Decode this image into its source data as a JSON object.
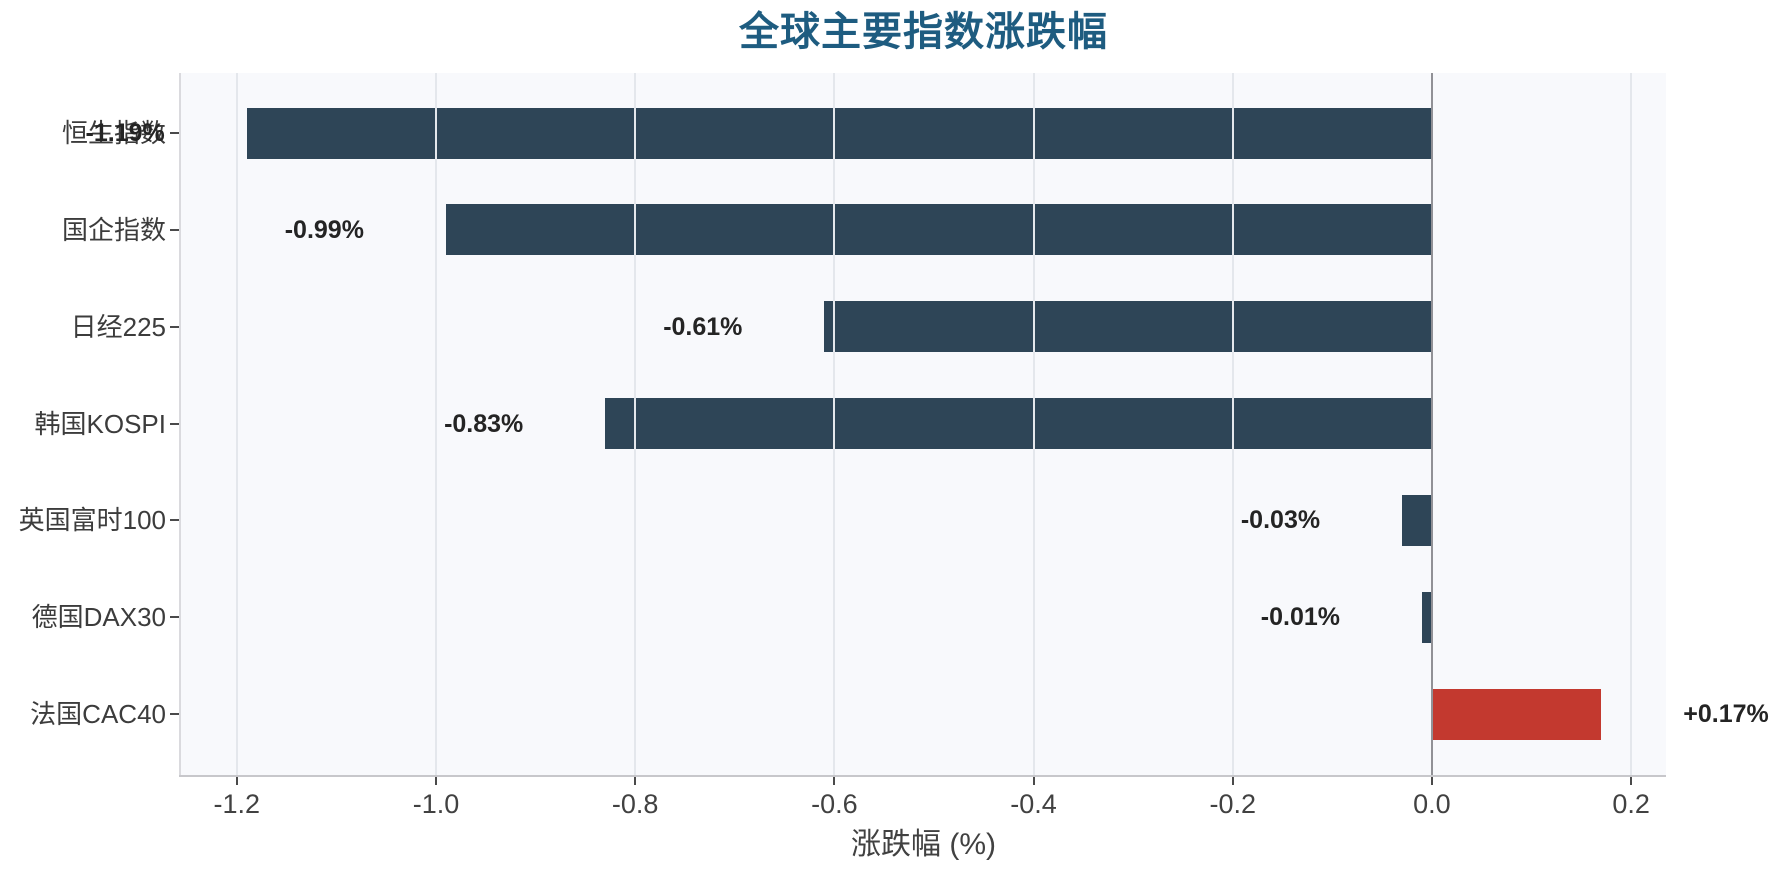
{
  "chart_data": {
    "type": "bar",
    "orientation": "horizontal",
    "title": "全球主要指数涨跌幅",
    "xlabel": "涨跌幅 (%)",
    "categories": [
      "恒生指数",
      "国企指数",
      "日经225",
      "韩国KOSPI",
      "英国富时100",
      "德国DAX30",
      "法国CAC40"
    ],
    "values": [
      -1.19,
      -0.99,
      -0.61,
      -0.83,
      -0.03,
      -0.01,
      0.17
    ],
    "bar_value_labels": [
      "-1.19%",
      "-0.99%",
      "-0.61%",
      "-0.83%",
      "-0.03%",
      "-0.01%",
      "+0.17%"
    ],
    "xticks": [
      -1.2,
      -1.0,
      -0.8,
      -0.6,
      -0.4,
      -0.2,
      0.0,
      0.2
    ],
    "xtick_labels": [
      "-1.2",
      "-1.0",
      "-0.8",
      "-0.6",
      "-0.4",
      "-0.2",
      "0.0",
      "0.2"
    ],
    "xlim": [
      -1.256,
      0.235
    ],
    "grid": true,
    "legend": false,
    "colors": {
      "negative_bar": "#2e4557",
      "positive_bar": "#c3392f",
      "title_text": "#1e5c80",
      "plot_background": "#f8f9fc",
      "figure_background": "#ffffff",
      "grid_line": "#e4e7ec",
      "zero_line": "#919196",
      "left_spine": "#dadade",
      "bottom_spine": "#c7c7cb",
      "tick_mark": "#4a4a4a",
      "axis_text": "#414141",
      "category_text": "#3c3c3c",
      "value_label_text": "#242424"
    }
  }
}
